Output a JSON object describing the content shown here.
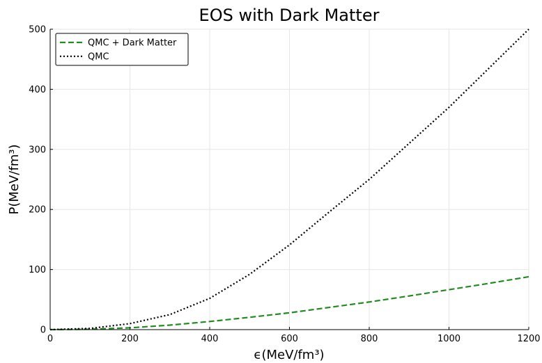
{
  "chart_data": {
    "type": "line",
    "title": "EOS with Dark Matter",
    "xlabel": "ϵ(MeV/fm³)",
    "ylabel": "P(MeV/fm³)",
    "xlim": [
      0,
      1200
    ],
    "ylim": [
      0,
      500
    ],
    "xticks": [
      0,
      200,
      400,
      600,
      800,
      1000,
      1200
    ],
    "yticks": [
      0,
      100,
      200,
      300,
      400,
      500
    ],
    "grid": true,
    "legend_position": "top-left",
    "series": [
      {
        "name": "QMC + Dark Matter",
        "color": "#228b22",
        "style": "dashed",
        "x": [
          0,
          100,
          200,
          300,
          400,
          500,
          600,
          700,
          800,
          900,
          1000,
          1100,
          1200
        ],
        "y": [
          0,
          0.7,
          3,
          7.5,
          13.5,
          20.5,
          28,
          37,
          46,
          56,
          66.5,
          77,
          88
        ]
      },
      {
        "name": "QMC",
        "color": "#000000",
        "style": "dotted",
        "x": [
          0,
          100,
          200,
          300,
          400,
          500,
          600,
          700,
          800,
          900,
          1000,
          1100,
          1200
        ],
        "y": [
          0,
          2,
          10,
          25,
          52,
          92,
          141,
          196,
          250,
          310,
          370,
          435,
          500
        ]
      }
    ]
  }
}
